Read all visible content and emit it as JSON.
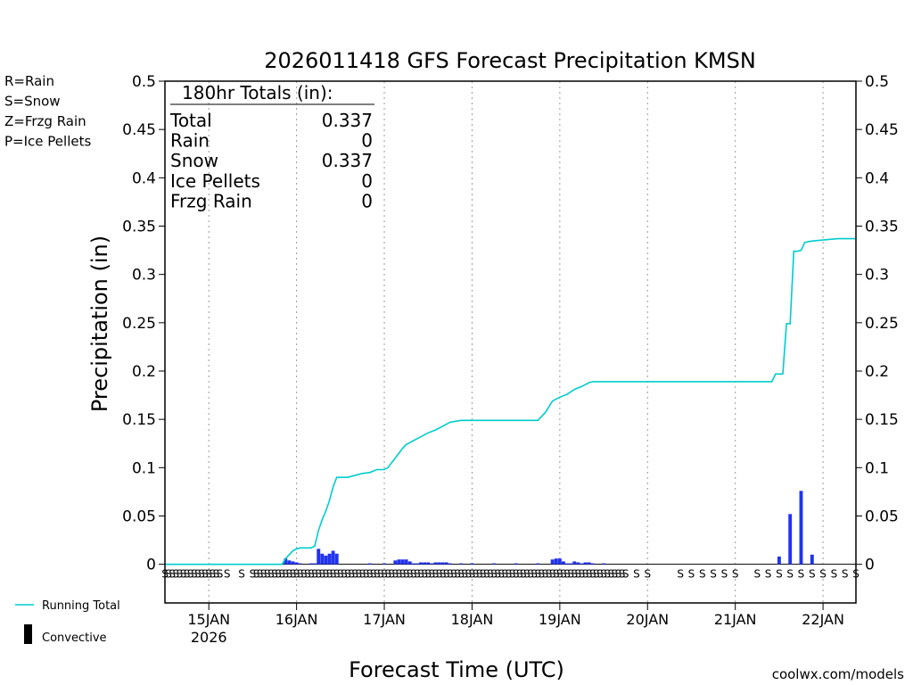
{
  "chart_data": {
    "type": "bar",
    "title": "2026011418 GFS Forecast Precipitation KMSN",
    "xlabel": "Forecast Time (UTC)",
    "ylabel": "Precipitation (in)",
    "ylim": [
      -0.04,
      0.5
    ],
    "y_ticks": [
      0,
      0.05,
      0.1,
      0.15,
      0.2,
      0.25,
      0.3,
      0.35,
      0.4,
      0.45,
      0.5
    ],
    "y_tick_labels": [
      "0",
      "0.05",
      "0.1",
      "0.15",
      "0.2",
      "0.25",
      "0.3",
      "0.35",
      "0.4",
      "0.45",
      "0.5"
    ],
    "xlim_hours": [
      -6,
      183
    ],
    "x_ticks": [
      {
        "hour": 6,
        "label": "15JAN",
        "sublabel": "2026"
      },
      {
        "hour": 30,
        "label": "16JAN",
        "sublabel": ""
      },
      {
        "hour": 54,
        "label": "17JAN",
        "sublabel": ""
      },
      {
        "hour": 78,
        "label": "18JAN",
        "sublabel": ""
      },
      {
        "hour": 102,
        "label": "19JAN",
        "sublabel": ""
      },
      {
        "hour": 126,
        "label": "20JAN",
        "sublabel": ""
      },
      {
        "hour": 150,
        "label": "21JAN",
        "sublabel": ""
      },
      {
        "hour": 174,
        "label": "22JAN",
        "sublabel": ""
      }
    ],
    "legend_top": [
      {
        "text": "R=Rain",
        "color": "#22dd22"
      },
      {
        "text": "S=Snow",
        "color": "#3355ee"
      },
      {
        "text": "Z=Frzg Rain",
        "color": "#f0a040"
      },
      {
        "text": "P=Ice Pellets",
        "color": "#ee22aa"
      }
    ],
    "legend_bottom": [
      {
        "text": "Running Total",
        "color": "#00cccc",
        "kind": "line"
      },
      {
        "text": "Convective",
        "color": "#000000",
        "kind": "bar"
      }
    ],
    "totals_box": {
      "header": "180hr Totals (in):",
      "rows": [
        {
          "label": "Total",
          "value": "0.337"
        },
        {
          "label": "Rain",
          "value": "0"
        },
        {
          "label": "Snow",
          "value": "0.337"
        },
        {
          "label": "Ice Pellets",
          "value": "0"
        },
        {
          "label": "Frzg Rain",
          "value": "0"
        }
      ]
    },
    "series": [
      {
        "name": "Snow (interval precip)",
        "color": "#2233ee",
        "points": [
          [
            27,
            0.006
          ],
          [
            28,
            0.004
          ],
          [
            29,
            0.003
          ],
          [
            30,
            0.002
          ],
          [
            31,
            0.001
          ],
          [
            34,
            0.001
          ],
          [
            35,
            0.001
          ],
          [
            36,
            0.016
          ],
          [
            37,
            0.011
          ],
          [
            38,
            0.009
          ],
          [
            39,
            0.011
          ],
          [
            40,
            0.014
          ],
          [
            41,
            0.011
          ],
          [
            50,
            0.001
          ],
          [
            54,
            0.001
          ],
          [
            57,
            0.004
          ],
          [
            58,
            0.005
          ],
          [
            59,
            0.005
          ],
          [
            60,
            0.005
          ],
          [
            61,
            0.003
          ],
          [
            62,
            0.001
          ],
          [
            63,
            0.001
          ],
          [
            64,
            0.002
          ],
          [
            65,
            0.002
          ],
          [
            66,
            0.002
          ],
          [
            67,
            0.001
          ],
          [
            68,
            0.002
          ],
          [
            69,
            0.002
          ],
          [
            70,
            0.002
          ],
          [
            71,
            0.002
          ],
          [
            72,
            0.001
          ],
          [
            75,
            0.001
          ],
          [
            78,
            0.001
          ],
          [
            84,
            0.001
          ],
          [
            90,
            0.001
          ],
          [
            96,
            0.001
          ],
          [
            100,
            0.005
          ],
          [
            101,
            0.006
          ],
          [
            102,
            0.006
          ],
          [
            103,
            0.003
          ],
          [
            104,
            0.001
          ],
          [
            105,
            0.001
          ],
          [
            106,
            0.003
          ],
          [
            107,
            0.002
          ],
          [
            108,
            0.001
          ],
          [
            109,
            0.002
          ],
          [
            110,
            0.002
          ],
          [
            111,
            0.001
          ],
          [
            114,
            0.001
          ],
          [
            162,
            0.008
          ],
          [
            165,
            0.052
          ],
          [
            168,
            0.076
          ],
          [
            171,
            0.01
          ]
        ]
      },
      {
        "name": "Running Total",
        "color": "#00cccc",
        "points": [
          [
            -6,
            0
          ],
          [
            26,
            0
          ],
          [
            27,
            0.006
          ],
          [
            28,
            0.01
          ],
          [
            29,
            0.014
          ],
          [
            30,
            0.016
          ],
          [
            31,
            0.017
          ],
          [
            34,
            0.017
          ],
          [
            35,
            0.019
          ],
          [
            36,
            0.035
          ],
          [
            37,
            0.046
          ],
          [
            38,
            0.055
          ],
          [
            39,
            0.066
          ],
          [
            40,
            0.08
          ],
          [
            41,
            0.09
          ],
          [
            44,
            0.09
          ],
          [
            48,
            0.094
          ],
          [
            50,
            0.095
          ],
          [
            52,
            0.098
          ],
          [
            54,
            0.098
          ],
          [
            55,
            0.1
          ],
          [
            57,
            0.11
          ],
          [
            58,
            0.115
          ],
          [
            59,
            0.12
          ],
          [
            60,
            0.124
          ],
          [
            61,
            0.126
          ],
          [
            62,
            0.128
          ],
          [
            63,
            0.13
          ],
          [
            64,
            0.132
          ],
          [
            66,
            0.136
          ],
          [
            68,
            0.139
          ],
          [
            70,
            0.143
          ],
          [
            72,
            0.147
          ],
          [
            75,
            0.149
          ],
          [
            78,
            0.149
          ],
          [
            90,
            0.149
          ],
          [
            96,
            0.149
          ],
          [
            98,
            0.157
          ],
          [
            100,
            0.169
          ],
          [
            101,
            0.171
          ],
          [
            102,
            0.173
          ],
          [
            104,
            0.176
          ],
          [
            106,
            0.181
          ],
          [
            108,
            0.184
          ],
          [
            110,
            0.188
          ],
          [
            111,
            0.189
          ],
          [
            114,
            0.189
          ],
          [
            150,
            0.189
          ],
          [
            160,
            0.189
          ],
          [
            161,
            0.197
          ],
          [
            162,
            0.197
          ],
          [
            163,
            0.197
          ],
          [
            164,
            0.249
          ],
          [
            165,
            0.249
          ],
          [
            166,
            0.324
          ],
          [
            167,
            0.324
          ],
          [
            168,
            0.325
          ],
          [
            169,
            0.333
          ],
          [
            170,
            0.334
          ],
          [
            172,
            0.335
          ],
          [
            175,
            0.336
          ],
          [
            178,
            0.337
          ],
          [
            183,
            0.337
          ]
        ]
      }
    ],
    "ptype_row_color": "#3355ee",
    "ptype_symbols": [
      {
        "hour": -6,
        "symbol": "S"
      },
      {
        "hour": -5,
        "symbol": "S"
      },
      {
        "hour": -4,
        "symbol": "S"
      },
      {
        "hour": -3,
        "symbol": "S"
      },
      {
        "hour": -2,
        "symbol": "S"
      },
      {
        "hour": -1,
        "symbol": "S"
      },
      {
        "hour": 0,
        "symbol": "S"
      },
      {
        "hour": 1,
        "symbol": "S"
      },
      {
        "hour": 2,
        "symbol": "S"
      },
      {
        "hour": 3,
        "symbol": "S"
      },
      {
        "hour": 4,
        "symbol": "S"
      },
      {
        "hour": 5,
        "symbol": "S"
      },
      {
        "hour": 6,
        "symbol": "S"
      },
      {
        "hour": 7,
        "symbol": "S"
      },
      {
        "hour": 8,
        "symbol": "S"
      },
      {
        "hour": 9,
        "symbol": "S"
      },
      {
        "hour": 11,
        "symbol": "S"
      },
      {
        "hour": 15,
        "symbol": "S"
      },
      {
        "hour": 18,
        "symbol": "S"
      },
      {
        "hour": 19,
        "symbol": "S"
      },
      {
        "hour": 20,
        "symbol": "S"
      },
      {
        "hour": 21,
        "symbol": "S"
      },
      {
        "hour": 22,
        "symbol": "S"
      },
      {
        "hour": 23,
        "symbol": "S"
      },
      {
        "hour": 24,
        "symbol": "S"
      },
      {
        "hour": 25,
        "symbol": "S"
      },
      {
        "hour": 26,
        "symbol": "S"
      },
      {
        "hour": 27,
        "symbol": "S"
      },
      {
        "hour": 28,
        "symbol": "S"
      },
      {
        "hour": 29,
        "symbol": "S"
      },
      {
        "hour": 30,
        "symbol": "S"
      },
      {
        "hour": 31,
        "symbol": "S"
      },
      {
        "hour": 32,
        "symbol": "S"
      },
      {
        "hour": 33,
        "symbol": "S"
      },
      {
        "hour": 34,
        "symbol": "S"
      },
      {
        "hour": 35,
        "symbol": "S"
      },
      {
        "hour": 36,
        "symbol": "S"
      },
      {
        "hour": 37,
        "symbol": "S"
      },
      {
        "hour": 38,
        "symbol": "S"
      },
      {
        "hour": 39,
        "symbol": "S"
      },
      {
        "hour": 40,
        "symbol": "S"
      },
      {
        "hour": 41,
        "symbol": "S"
      },
      {
        "hour": 42,
        "symbol": "S"
      },
      {
        "hour": 43,
        "symbol": "S"
      },
      {
        "hour": 44,
        "symbol": "S"
      },
      {
        "hour": 45,
        "symbol": "S"
      },
      {
        "hour": 46,
        "symbol": "S"
      },
      {
        "hour": 47,
        "symbol": "S"
      },
      {
        "hour": 48,
        "symbol": "S"
      },
      {
        "hour": 49,
        "symbol": "S"
      },
      {
        "hour": 50,
        "symbol": "S"
      },
      {
        "hour": 51,
        "symbol": "S"
      },
      {
        "hour": 52,
        "symbol": "S"
      },
      {
        "hour": 53,
        "symbol": "S"
      },
      {
        "hour": 54,
        "symbol": "S"
      },
      {
        "hour": 55,
        "symbol": "S"
      },
      {
        "hour": 56,
        "symbol": "S"
      },
      {
        "hour": 57,
        "symbol": "S"
      },
      {
        "hour": 58,
        "symbol": "S"
      },
      {
        "hour": 59,
        "symbol": "S"
      },
      {
        "hour": 60,
        "symbol": "S"
      },
      {
        "hour": 61,
        "symbol": "S"
      },
      {
        "hour": 62,
        "symbol": "S"
      },
      {
        "hour": 63,
        "symbol": "S"
      },
      {
        "hour": 64,
        "symbol": "S"
      },
      {
        "hour": 65,
        "symbol": "S"
      },
      {
        "hour": 66,
        "symbol": "S"
      },
      {
        "hour": 67,
        "symbol": "S"
      },
      {
        "hour": 68,
        "symbol": "S"
      },
      {
        "hour": 69,
        "symbol": "S"
      },
      {
        "hour": 70,
        "symbol": "S"
      },
      {
        "hour": 71,
        "symbol": "S"
      },
      {
        "hour": 72,
        "symbol": "S"
      },
      {
        "hour": 73,
        "symbol": "S"
      },
      {
        "hour": 74,
        "symbol": "S"
      },
      {
        "hour": 75,
        "symbol": "S"
      },
      {
        "hour": 76,
        "symbol": "S"
      },
      {
        "hour": 77,
        "symbol": "S"
      },
      {
        "hour": 78,
        "symbol": "S"
      },
      {
        "hour": 79,
        "symbol": "S"
      },
      {
        "hour": 80,
        "symbol": "S"
      },
      {
        "hour": 81,
        "symbol": "S"
      },
      {
        "hour": 82,
        "symbol": "S"
      },
      {
        "hour": 83,
        "symbol": "S"
      },
      {
        "hour": 84,
        "symbol": "S"
      },
      {
        "hour": 85,
        "symbol": "S"
      },
      {
        "hour": 86,
        "symbol": "S"
      },
      {
        "hour": 87,
        "symbol": "S"
      },
      {
        "hour": 88,
        "symbol": "S"
      },
      {
        "hour": 89,
        "symbol": "S"
      },
      {
        "hour": 90,
        "symbol": "S"
      },
      {
        "hour": 91,
        "symbol": "S"
      },
      {
        "hour": 92,
        "symbol": "S"
      },
      {
        "hour": 93,
        "symbol": "S"
      },
      {
        "hour": 94,
        "symbol": "S"
      },
      {
        "hour": 95,
        "symbol": "S"
      },
      {
        "hour": 96,
        "symbol": "S"
      },
      {
        "hour": 97,
        "symbol": "S"
      },
      {
        "hour": 98,
        "symbol": "S"
      },
      {
        "hour": 99,
        "symbol": "S"
      },
      {
        "hour": 100,
        "symbol": "S"
      },
      {
        "hour": 101,
        "symbol": "S"
      },
      {
        "hour": 102,
        "symbol": "S"
      },
      {
        "hour": 103,
        "symbol": "S"
      },
      {
        "hour": 104,
        "symbol": "S"
      },
      {
        "hour": 105,
        "symbol": "S"
      },
      {
        "hour": 106,
        "symbol": "S"
      },
      {
        "hour": 107,
        "symbol": "S"
      },
      {
        "hour": 108,
        "symbol": "S"
      },
      {
        "hour": 109,
        "symbol": "S"
      },
      {
        "hour": 110,
        "symbol": "S"
      },
      {
        "hour": 111,
        "symbol": "S"
      },
      {
        "hour": 112,
        "symbol": "S"
      },
      {
        "hour": 113,
        "symbol": "S"
      },
      {
        "hour": 114,
        "symbol": "S"
      },
      {
        "hour": 115,
        "symbol": "S"
      },
      {
        "hour": 116,
        "symbol": "S"
      },
      {
        "hour": 117,
        "symbol": "S"
      },
      {
        "hour": 118,
        "symbol": "S"
      },
      {
        "hour": 119,
        "symbol": "S"
      },
      {
        "hour": 120,
        "symbol": "S"
      },
      {
        "hour": 123,
        "symbol": "S"
      },
      {
        "hour": 126,
        "symbol": "S"
      },
      {
        "hour": 135,
        "symbol": "S"
      },
      {
        "hour": 138,
        "symbol": "S"
      },
      {
        "hour": 141,
        "symbol": "S"
      },
      {
        "hour": 144,
        "symbol": "S"
      },
      {
        "hour": 147,
        "symbol": "S"
      },
      {
        "hour": 150,
        "symbol": "S"
      },
      {
        "hour": 156,
        "symbol": "S"
      },
      {
        "hour": 159,
        "symbol": "S"
      },
      {
        "hour": 162,
        "symbol": "S"
      },
      {
        "hour": 165,
        "symbol": "S"
      },
      {
        "hour": 168,
        "symbol": "S"
      },
      {
        "hour": 171,
        "symbol": "S"
      },
      {
        "hour": 174,
        "symbol": "S"
      },
      {
        "hour": 177,
        "symbol": "S"
      },
      {
        "hour": 180,
        "symbol": "S"
      },
      {
        "hour": 183,
        "symbol": "S"
      }
    ],
    "credit": "coolwx.com/models",
    "credit_color": "#cc0000"
  }
}
